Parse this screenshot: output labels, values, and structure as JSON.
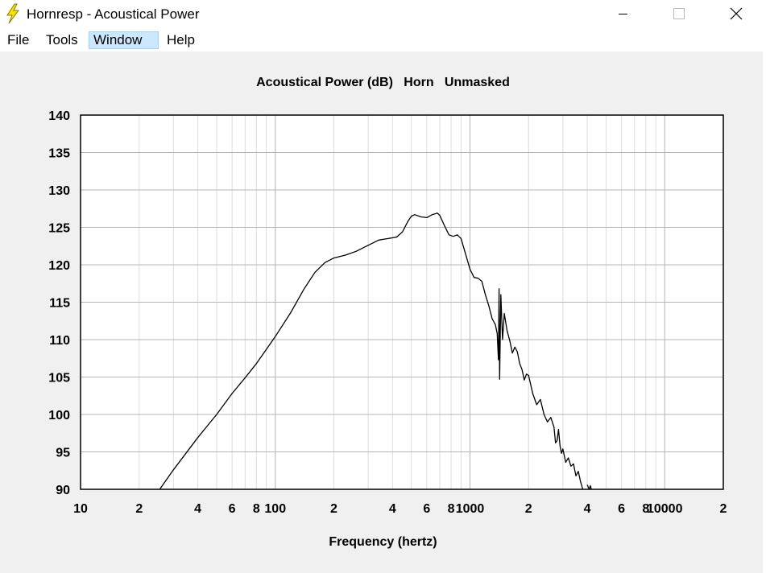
{
  "window": {
    "title": "Hornresp - Acoustical Power",
    "app_icon": "lightning-icon",
    "controls": [
      "minimize-icon",
      "maximize-icon",
      "close-icon"
    ]
  },
  "menu": {
    "items": [
      {
        "label": "File"
      },
      {
        "label": "Tools"
      },
      {
        "label": "Window",
        "active": true
      },
      {
        "label": "Help"
      }
    ]
  },
  "chart_data": {
    "type": "line",
    "title": "Acoustical Power (dB)   Horn   Unmasked",
    "xlabel": "Frequency (hertz)",
    "ylabel": "",
    "xscale": "log",
    "xlim": [
      10,
      20000
    ],
    "ylim": [
      90,
      140
    ],
    "yticks": [
      140,
      135,
      130,
      125,
      120,
      115,
      110,
      105,
      100,
      95,
      90
    ],
    "xtick_labels": [
      {
        "x": 10,
        "label": "10"
      },
      {
        "x": 20,
        "label": "2"
      },
      {
        "x": 40,
        "label": "4"
      },
      {
        "x": 60,
        "label": "6"
      },
      {
        "x": 80,
        "label": "8"
      },
      {
        "x": 100,
        "label": "100"
      },
      {
        "x": 200,
        "label": "2"
      },
      {
        "x": 400,
        "label": "4"
      },
      {
        "x": 600,
        "label": "6"
      },
      {
        "x": 800,
        "label": "8"
      },
      {
        "x": 1000,
        "label": "1000"
      },
      {
        "x": 2000,
        "label": "2"
      },
      {
        "x": 4000,
        "label": "4"
      },
      {
        "x": 6000,
        "label": "6"
      },
      {
        "x": 8000,
        "label": "8"
      },
      {
        "x": 10000,
        "label": "10000"
      },
      {
        "x": 20000,
        "label": "2"
      }
    ],
    "grid": true,
    "colors": {
      "line": "#000000",
      "grid_major": "#b4b4b4",
      "grid_minor": "#dcdcdc"
    },
    "series": [
      {
        "points": [
          [
            25.5,
            90.0
          ],
          [
            30,
            92.6
          ],
          [
            40,
            96.9
          ],
          [
            50,
            100.0
          ],
          [
            60,
            102.8
          ],
          [
            70,
            104.9
          ],
          [
            80,
            106.8
          ],
          [
            90,
            108.7
          ],
          [
            100,
            110.4
          ],
          [
            120,
            113.6
          ],
          [
            140,
            116.7
          ],
          [
            160,
            119.0
          ],
          [
            180,
            120.3
          ],
          [
            200,
            120.9
          ],
          [
            230,
            121.3
          ],
          [
            260,
            121.8
          ],
          [
            300,
            122.6
          ],
          [
            340,
            123.3
          ],
          [
            380,
            123.5
          ],
          [
            420,
            123.7
          ],
          [
            450,
            124.4
          ],
          [
            480,
            125.8
          ],
          [
            500,
            126.5
          ],
          [
            520,
            126.7
          ],
          [
            560,
            126.4
          ],
          [
            600,
            126.3
          ],
          [
            640,
            126.7
          ],
          [
            680,
            126.9
          ],
          [
            700,
            126.6
          ],
          [
            740,
            125.2
          ],
          [
            780,
            124.0
          ],
          [
            820,
            123.8
          ],
          [
            860,
            124.0
          ],
          [
            900,
            123.5
          ],
          [
            960,
            121.0
          ],
          [
            1000,
            119.4
          ],
          [
            1050,
            118.3
          ],
          [
            1100,
            118.2
          ],
          [
            1150,
            117.8
          ],
          [
            1200,
            116.0
          ],
          [
            1250,
            114.5
          ],
          [
            1300,
            112.8
          ],
          [
            1350,
            112.0
          ],
          [
            1380,
            110.8
          ],
          [
            1400,
            107.3
          ],
          [
            1410,
            116.8
          ],
          [
            1420,
            104.7
          ],
          [
            1440,
            116.0
          ],
          [
            1470,
            110.0
          ],
          [
            1500,
            113.5
          ],
          [
            1550,
            111.2
          ],
          [
            1600,
            109.9
          ],
          [
            1650,
            108.2
          ],
          [
            1700,
            109.0
          ],
          [
            1750,
            108.4
          ],
          [
            1800,
            106.8
          ],
          [
            1850,
            106.0
          ],
          [
            1900,
            104.6
          ],
          [
            1950,
            105.4
          ],
          [
            2000,
            105.2
          ],
          [
            2100,
            102.8
          ],
          [
            2200,
            101.3
          ],
          [
            2300,
            102.0
          ],
          [
            2400,
            100.0
          ],
          [
            2500,
            99.0
          ],
          [
            2600,
            99.6
          ],
          [
            2700,
            98.3
          ],
          [
            2750,
            96.2
          ],
          [
            2800,
            96.5
          ],
          [
            2850,
            98.0
          ],
          [
            2900,
            95.8
          ],
          [
            2950,
            94.8
          ],
          [
            3000,
            95.4
          ],
          [
            3100,
            93.6
          ],
          [
            3200,
            94.2
          ],
          [
            3300,
            93.1
          ],
          [
            3400,
            93.4
          ],
          [
            3500,
            91.8
          ],
          [
            3600,
            92.4
          ],
          [
            3700,
            91.0
          ],
          [
            3800,
            90.0
          ]
        ]
      },
      {
        "points": [
          [
            4000,
            90.6
          ],
          [
            4100,
            90.0
          ],
          [
            4150,
            90.5
          ],
          [
            4200,
            90.0
          ]
        ]
      }
    ]
  }
}
